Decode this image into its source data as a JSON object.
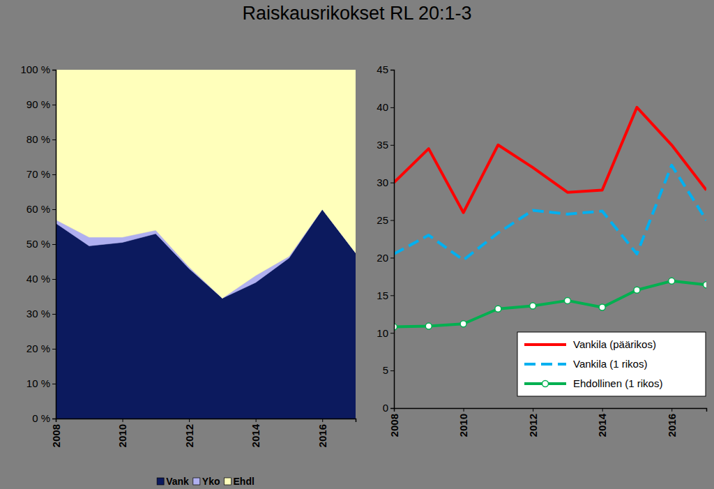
{
  "chart_data": [
    {
      "type": "area",
      "title": "Raiskausrikokset RL 20:1-3",
      "stacked": true,
      "grid": false,
      "legend": "bottom",
      "x": [
        2008,
        2009,
        2010,
        2011,
        2012,
        2013,
        2014,
        2015,
        2016,
        2017
      ],
      "xlim": [
        2008,
        2017
      ],
      "xticks": [
        2008,
        2010,
        2012,
        2014,
        2016
      ],
      "ylim": [
        0,
        100
      ],
      "yticks": [
        {
          "value": 0,
          "label": "0 %"
        },
        {
          "value": 10,
          "label": "10 %"
        },
        {
          "value": 20,
          "label": "20 %"
        },
        {
          "value": 30,
          "label": "30 %"
        },
        {
          "value": 40,
          "label": "40 %"
        },
        {
          "value": 50,
          "label": "50 %"
        },
        {
          "value": 60,
          "label": "60 %"
        },
        {
          "value": 70,
          "label": "70 %"
        },
        {
          "value": 80,
          "label": "80 %"
        },
        {
          "value": 90,
          "label": "90 %"
        },
        {
          "value": 100,
          "label": "100 %"
        }
      ],
      "series": [
        {
          "name": "Vank",
          "color": "#0c1a5e",
          "values": [
            56,
            49.5,
            50.5,
            53,
            43,
            34.5,
            39,
            46,
            60,
            47.5
          ]
        },
        {
          "name": "Yko",
          "color": "#b0b0f0",
          "values": [
            1,
            2.5,
            1.5,
            1,
            0.5,
            0,
            2,
            0.5,
            0,
            0
          ]
        },
        {
          "name": "Ehdl",
          "color": "#ffffbb",
          "values": [
            43,
            48,
            48,
            46,
            56.5,
            65.5,
            59,
            53.5,
            40,
            52.5
          ]
        }
      ]
    },
    {
      "type": "line",
      "grid": false,
      "legend": "lower right",
      "x": [
        2008,
        2009,
        2010,
        2011,
        2012,
        2013,
        2014,
        2015,
        2016,
        2017
      ],
      "xlim": [
        2008,
        2017
      ],
      "xticks": [
        2008,
        2010,
        2012,
        2014,
        2016
      ],
      "ylim": [
        0,
        45
      ],
      "yticks": [
        0,
        5,
        10,
        15,
        20,
        25,
        30,
        35,
        40,
        45
      ],
      "series": [
        {
          "name": "Vankila (päärikos)",
          "color": "#ff0000",
          "line_style": "solid",
          "values": [
            30,
            34.5,
            26,
            35,
            32,
            28.7,
            29,
            40,
            35,
            29
          ]
        },
        {
          "name": "Vankila (1 rikos)",
          "color": "#00b0f0",
          "line_style": "dashed",
          "values": [
            20.5,
            23,
            19.7,
            23.3,
            26.3,
            25.8,
            26.2,
            20.5,
            32.3,
            25
          ]
        },
        {
          "name": "Ehdollinen (1 rikos)",
          "color": "#00b050",
          "line_style": "solid",
          "marker": "circle",
          "values": [
            10.8,
            10.9,
            11.2,
            13.2,
            13.6,
            14.3,
            13.4,
            15.7,
            16.9,
            16.4
          ]
        }
      ]
    }
  ]
}
